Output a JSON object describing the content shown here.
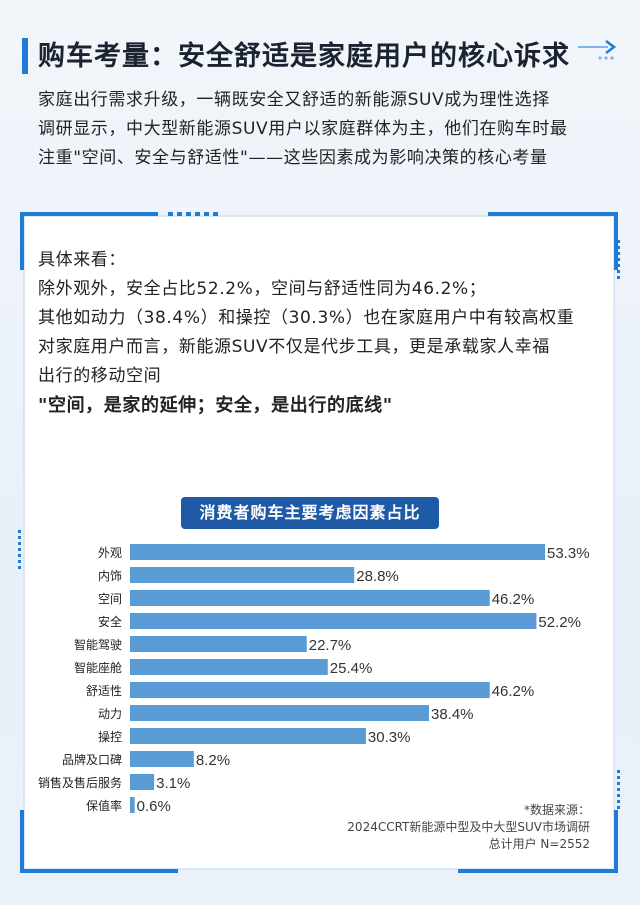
{
  "header": {
    "title": "购车考量：安全舒适是家庭用户的核心诉求"
  },
  "intro": {
    "lines": [
      "家庭出行需求升级，一辆既安全又舒适的新能源SUV成为理性选择",
      "调研显示，中大型新能源SUV用户以家庭群体为主，他们在购车时最",
      "注重\"空间、安全与舒适性\"——这些因素成为影响决策的核心考量"
    ]
  },
  "content": {
    "lines": [
      "具体来看：",
      "除外观外，安全占比52.2%，空间与舒适性同为46.2%；",
      "其他如动力（38.4%）和操控（30.3%）也在家庭用户中有较高权重",
      "对家庭用户而言，新能源SUV不仅是代步工具，更是承载家人幸福",
      "出行的移动空间"
    ],
    "highlight": "\"空间，是家的延伸；安全，是出行的底线\""
  },
  "chart_data": {
    "type": "bar",
    "orientation": "horizontal",
    "title": "消费者购车主要考虑因素占比",
    "categories": [
      "外观",
      "内饰",
      "空间",
      "安全",
      "智能驾驶",
      "智能座舱",
      "舒适性",
      "动力",
      "操控",
      "品牌及口碑",
      "销售及售后服务",
      "保值率"
    ],
    "values": [
      53.3,
      28.8,
      46.2,
      52.2,
      22.7,
      25.4,
      46.2,
      38.4,
      30.3,
      8.2,
      3.1,
      0.6
    ],
    "value_labels": [
      "53.3%",
      "28.8%",
      "46.2%",
      "52.2%",
      "22.7%",
      "25.4%",
      "46.2%",
      "38.4%",
      "30.3%",
      "8.2%",
      "3.1%",
      "0.6%"
    ],
    "xlim": [
      0,
      53.3
    ],
    "grid": false,
    "bar_color": "#5b9bd5"
  },
  "source": {
    "lines": [
      "*数据来源：",
      "2024CCRT新能源中型及中大型SUV市场调研",
      "总计用户 N=2552"
    ]
  },
  "colors": {
    "accent": "#1f7ad8",
    "title_bg": "#1f5aa6"
  }
}
